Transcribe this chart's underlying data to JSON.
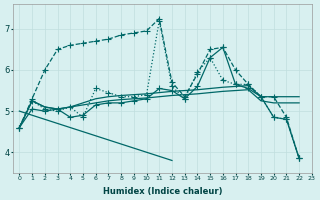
{
  "xlabel": "Humidex (Indice chaleur)",
  "bg_color": "#d8f0f0",
  "grid_color": "#c0dede",
  "line_color": "#006868",
  "xlim": [
    -0.5,
    23
  ],
  "ylim": [
    3.5,
    7.6
  ],
  "yticks": [
    4,
    5,
    6,
    7
  ],
  "xticks": [
    0,
    1,
    2,
    3,
    4,
    5,
    6,
    7,
    8,
    9,
    10,
    11,
    12,
    13,
    14,
    15,
    16,
    17,
    18,
    19,
    20,
    21,
    22,
    23
  ],
  "series": [
    {
      "y": [
        4.6,
        5.25,
        5.05,
        5.0,
        5.1,
        4.85,
        5.55,
        5.45,
        5.35,
        5.35,
        5.4,
        7.2,
        5.6,
        5.3,
        5.95,
        6.3,
        5.75,
        5.65,
        5.65,
        5.35,
        4.85,
        4.8,
        3.85
      ],
      "marker": "+",
      "markersize": 4,
      "linestyle": ":",
      "linewidth": 0.9
    },
    {
      "y": [
        4.6,
        5.25,
        5.1,
        5.05,
        5.1,
        5.2,
        5.3,
        5.35,
        5.38,
        5.4,
        5.42,
        5.45,
        5.48,
        5.5,
        5.52,
        5.55,
        5.58,
        5.6,
        5.62,
        5.35,
        5.35,
        5.35,
        5.35
      ],
      "marker": null,
      "markersize": 0,
      "linestyle": "-",
      "linewidth": 0.9
    },
    {
      "y": [
        4.6,
        5.25,
        5.1,
        5.05,
        5.1,
        5.15,
        5.2,
        5.25,
        5.28,
        5.3,
        5.32,
        5.35,
        5.38,
        5.4,
        5.42,
        5.45,
        5.48,
        5.5,
        5.52,
        5.25,
        5.2,
        5.2,
        5.2
      ],
      "marker": null,
      "markersize": 0,
      "linestyle": "-",
      "linewidth": 0.9
    },
    {
      "y": [
        4.6,
        5.3,
        6.0,
        6.5,
        6.6,
        6.65,
        6.7,
        6.75,
        6.85,
        6.9,
        6.95,
        7.25,
        5.7,
        5.35,
        5.9,
        6.5,
        6.55,
        6.0,
        5.65,
        5.35,
        5.35,
        4.85,
        3.85
      ],
      "marker": "+",
      "markersize": 4,
      "linestyle": "--",
      "linewidth": 0.9
    },
    {
      "y": [
        4.6,
        5.05,
        5.0,
        5.05,
        4.85,
        4.9,
        5.15,
        5.2,
        5.2,
        5.25,
        5.3,
        5.55,
        5.5,
        5.3,
        5.6,
        6.3,
        6.55,
        5.65,
        5.55,
        5.35,
        4.85,
        4.8,
        3.85
      ],
      "marker": "+",
      "markersize": 4,
      "linestyle": "-",
      "linewidth": 0.9
    },
    {
      "y": [
        5.0,
        4.9,
        4.8,
        4.7,
        4.6,
        4.5,
        4.4,
        4.3,
        4.2,
        4.1,
        4.0,
        3.9,
        3.8,
        null,
        null,
        null,
        null,
        null,
        null,
        null,
        null,
        null,
        null
      ],
      "marker": null,
      "markersize": 0,
      "linestyle": "-",
      "linewidth": 0.9
    }
  ]
}
